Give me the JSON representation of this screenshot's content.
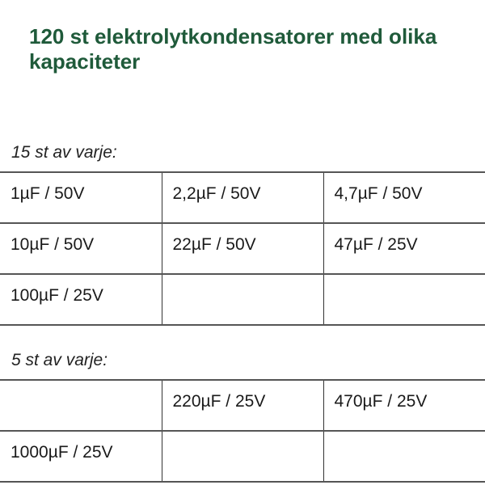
{
  "title": "120 st elektrolytkondensatorer med olika kapaciteter",
  "accent_color": "#1f5a3a",
  "groups": [
    {
      "label": "15 st av varje:",
      "rows": [
        [
          "1µF / 50V",
          "2,2µF / 50V",
          "4,7µF / 50V"
        ],
        [
          "10µF / 50V",
          "22µF / 50V",
          "47µF / 25V"
        ],
        [
          "100µF / 25V",
          "",
          ""
        ]
      ]
    },
    {
      "label": "5 st av varje:",
      "rows": [
        [
          "",
          "220µF / 25V",
          "470µF / 25V"
        ],
        [
          "1000µF / 25V",
          "",
          ""
        ]
      ]
    }
  ]
}
